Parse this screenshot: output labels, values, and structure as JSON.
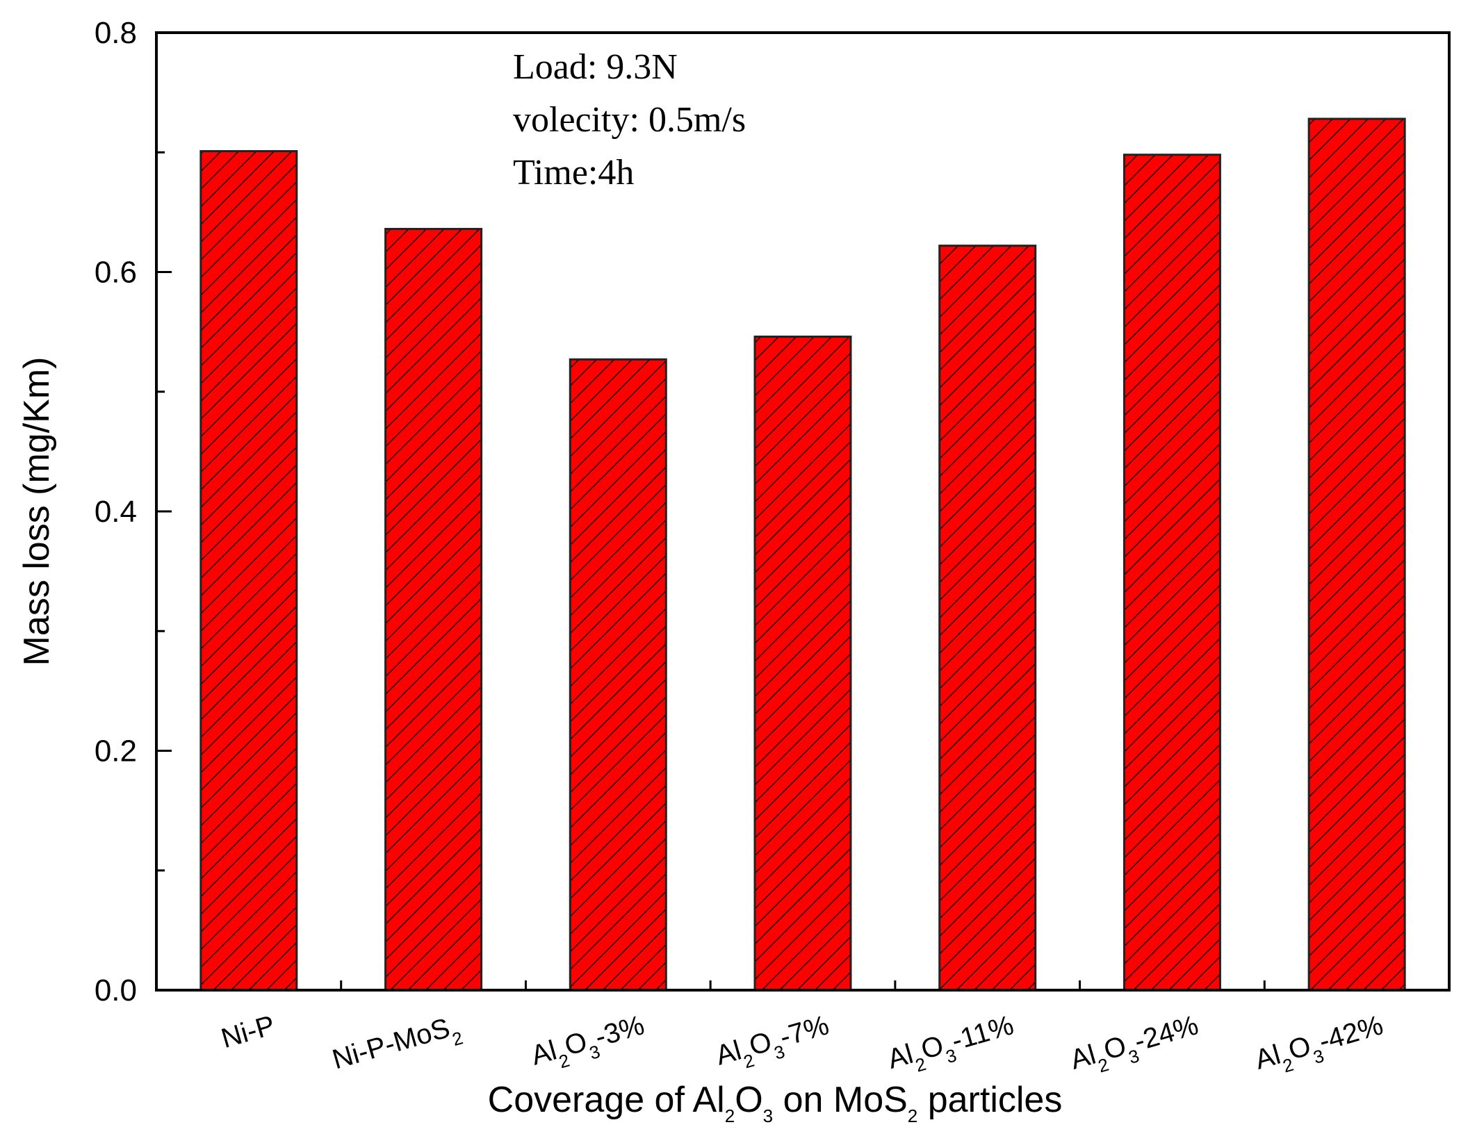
{
  "chart_data": {
    "type": "bar",
    "categories": [
      "Ni-P",
      "Ni-P-MoS2",
      "Al2O3-3%",
      "Al2O3-7%",
      "Al2O3-11%",
      "Al2O3-24%",
      "Al2O3-42%"
    ],
    "category_labels": [
      [
        {
          "t": "Ni-P"
        }
      ],
      [
        {
          "t": "Ni-P-MoS"
        },
        {
          "t": "2",
          "sub": true
        }
      ],
      [
        {
          "t": "Al"
        },
        {
          "t": "2",
          "sub": true
        },
        {
          "t": "O"
        },
        {
          "t": "3",
          "sub": true
        },
        {
          "t": "-3%"
        }
      ],
      [
        {
          "t": "Al"
        },
        {
          "t": "2",
          "sub": true
        },
        {
          "t": "O"
        },
        {
          "t": "3",
          "sub": true
        },
        {
          "t": "-7%"
        }
      ],
      [
        {
          "t": "Al"
        },
        {
          "t": "2",
          "sub": true
        },
        {
          "t": "O"
        },
        {
          "t": "3",
          "sub": true
        },
        {
          "t": "-11%"
        }
      ],
      [
        {
          "t": "Al"
        },
        {
          "t": "2",
          "sub": true
        },
        {
          "t": "O"
        },
        {
          "t": "3",
          "sub": true
        },
        {
          "t": "-24%"
        }
      ],
      [
        {
          "t": "Al"
        },
        {
          "t": "2",
          "sub": true
        },
        {
          "t": "O"
        },
        {
          "t": "3",
          "sub": true
        },
        {
          "t": "-42%"
        }
      ]
    ],
    "values": [
      0.701,
      0.636,
      0.527,
      0.546,
      0.622,
      0.698,
      0.728
    ],
    "xlabel_parts": [
      {
        "t": "Coverage of Al"
      },
      {
        "t": "2",
        "sub": true
      },
      {
        "t": "O"
      },
      {
        "t": "3",
        "sub": true
      },
      {
        "t": " on MoS"
      },
      {
        "t": "2",
        "sub": true
      },
      {
        "t": " particles"
      }
    ],
    "ylabel": "Mass loss (mg/Km)",
    "ylim": [
      0,
      0.8
    ],
    "yticks": [
      "0.0",
      "0.2",
      "0.4",
      "0.6",
      "0.8"
    ],
    "annotations": [
      "Load: 9.3N",
      "volecity: 0.5m/s",
      "Time:4h"
    ],
    "bar_color": "#ff0000",
    "hatch": "diagonal",
    "grid": false
  }
}
